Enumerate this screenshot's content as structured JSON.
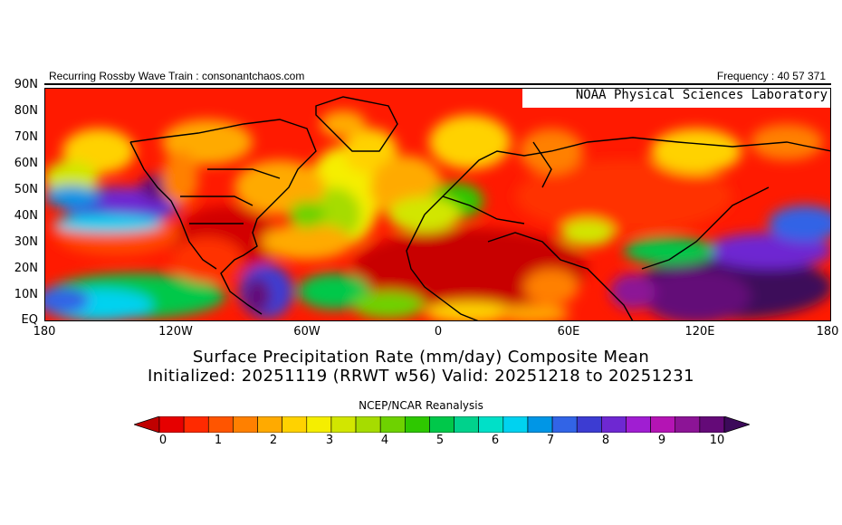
{
  "header": {
    "left_text": "Recurring Rossby Wave Train : consonantchaos.com",
    "right_text": "Frequency : 40 57 371"
  },
  "map": {
    "lab_label": "NOAA Physical Sciences Laboratory",
    "lat_labels": [
      "90N",
      "80N",
      "70N",
      "60N",
      "50N",
      "40N",
      "30N",
      "20N",
      "10N",
      "EQ"
    ],
    "lon_labels": [
      "180",
      "120W",
      "60W",
      "0",
      "60E",
      "120E",
      "180"
    ]
  },
  "titles": {
    "line1": "Surface Precipitation Rate (mm/day) Composite Mean",
    "line2": "Initialized: 20251119 (RRWT w56) Valid: 20251218 to 20251231",
    "source": "NCEP/NCAR Reanalysis"
  },
  "colorbar": {
    "labels": [
      "0",
      "1",
      "2",
      "3",
      "4",
      "5",
      "6",
      "7",
      "8",
      "9",
      "10"
    ],
    "colors": [
      "#c00000",
      "#e60000",
      "#ff2a00",
      "#ff5500",
      "#ff8000",
      "#ffaa00",
      "#ffd200",
      "#f5ee00",
      "#d2e600",
      "#a6dc00",
      "#6ed200",
      "#2ec800",
      "#00c84a",
      "#00d28c",
      "#00e0c8",
      "#00d2f0",
      "#0096e6",
      "#3264e6",
      "#3c3cd2",
      "#6e28d2",
      "#a01ed2",
      "#b414b4",
      "#8c1496",
      "#640a78",
      "#3c0a5a"
    ]
  },
  "chart_data": {
    "type": "heatmap",
    "title": "Surface Precipitation Rate (mm/day) Composite Mean",
    "subtitle": "Initialized: 20251119 (RRWT w56) Valid: 20251218 to 20251231",
    "variable_unit": "mm/day",
    "x_range": [
      -180,
      180
    ],
    "y_range": [
      0,
      90
    ],
    "color_scale_range": [
      0,
      10
    ]
  }
}
